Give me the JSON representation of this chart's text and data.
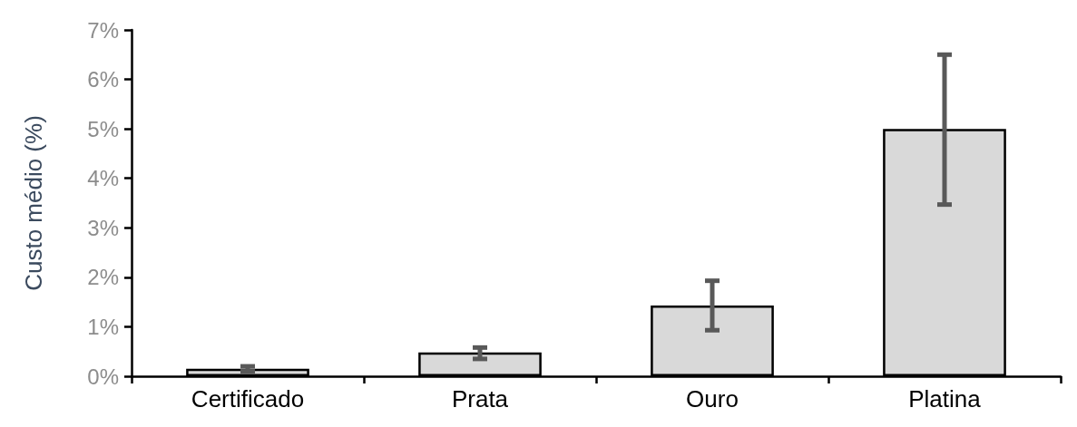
{
  "chart_data": {
    "type": "bar",
    "ylabel": "Custo médio (%)",
    "categories": [
      "Certificado",
      "Prata",
      "Ouro",
      "Platina"
    ],
    "values": [
      0.15,
      0.48,
      1.43,
      5.0
    ],
    "errors": [
      [
        0.1,
        0.2
      ],
      [
        0.35,
        0.58
      ],
      [
        0.93,
        1.93
      ],
      [
        3.47,
        6.5
      ]
    ],
    "color": "#d9d9d9",
    "ylim": [
      0,
      7
    ],
    "yticks": [
      {
        "value": 0,
        "label": "0%"
      },
      {
        "value": 1,
        "label": "1%"
      },
      {
        "value": 2,
        "label": "2%"
      },
      {
        "value": 3,
        "label": "3%"
      },
      {
        "value": 4,
        "label": "4%"
      },
      {
        "value": 5,
        "label": "5%"
      },
      {
        "value": 6,
        "label": "6%"
      },
      {
        "value": 7,
        "label": "7%"
      }
    ],
    "grid": false
  }
}
